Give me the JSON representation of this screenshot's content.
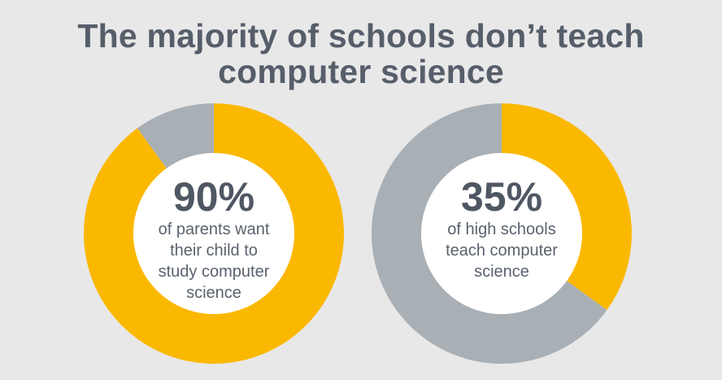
{
  "title_lines": [
    "The majority of schools don’t teach",
    "computer science"
  ],
  "colors": {
    "background": "#e8e8e8",
    "accent": "#fbb800",
    "remainder": "#a8afb5",
    "inner": "#ffffff",
    "text": "#565e6a"
  },
  "chart_data": [
    {
      "type": "pie",
      "value_label": "90%",
      "description_lines": [
        "of parents want",
        "their child to",
        "study computer",
        "science"
      ],
      "slices": [
        {
          "label": "want",
          "value": 90,
          "color": "#fbb800"
        },
        {
          "label": "remainder",
          "value": 10,
          "color": "#a8afb5"
        }
      ]
    },
    {
      "type": "pie",
      "value_label": "35%",
      "description_lines": [
        "of high schools",
        "teach computer",
        "science"
      ],
      "slices": [
        {
          "label": "teach",
          "value": 35,
          "color": "#fbb800"
        },
        {
          "label": "remainder",
          "value": 65,
          "color": "#a8afb5"
        }
      ]
    }
  ]
}
